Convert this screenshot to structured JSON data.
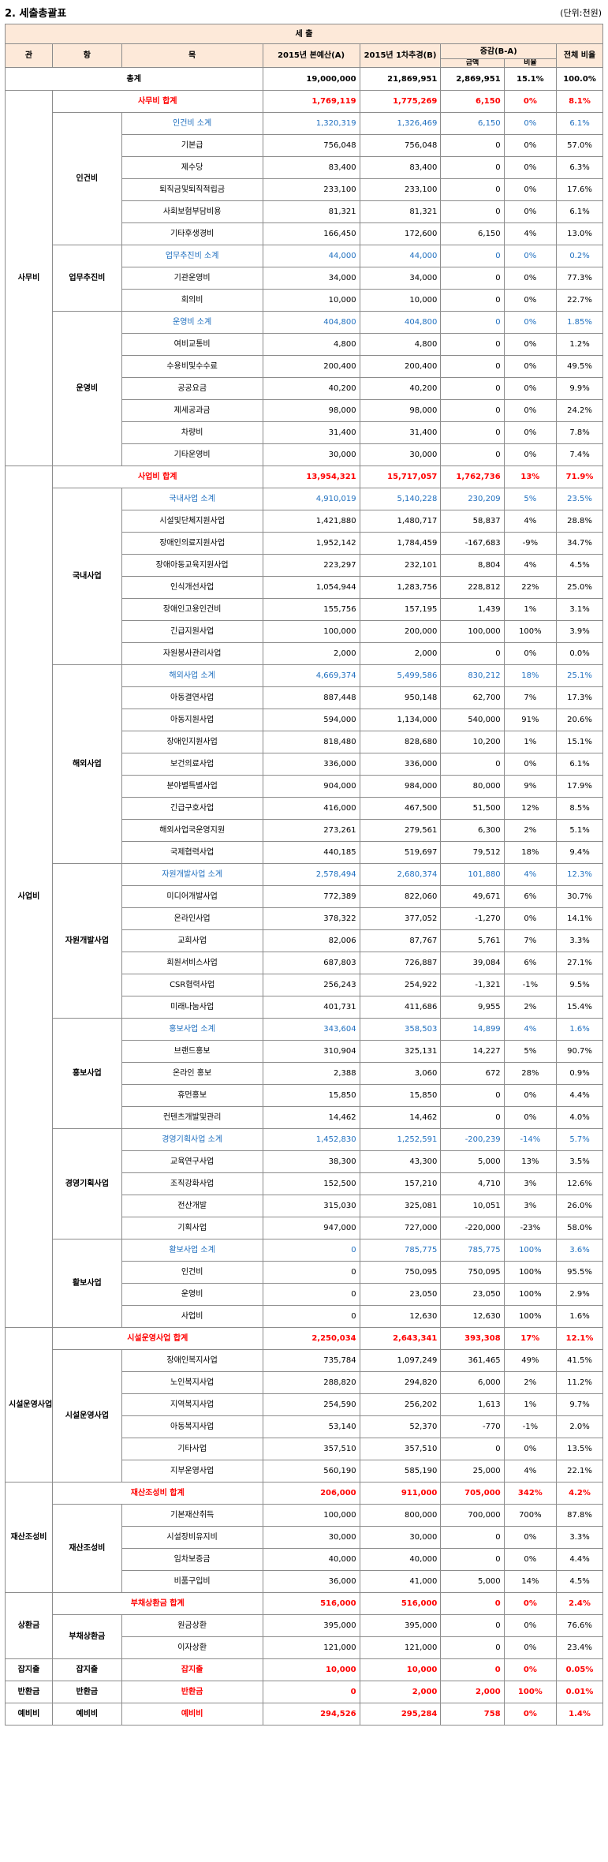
{
  "title": "2. 세출총괄표",
  "unit": "(단위:천원)",
  "header": {
    "section": "세  출",
    "gwan": "관",
    "hang": "항",
    "mok": "목",
    "col_a": "2015년 본예산(A)",
    "col_b": "2015년 1차추경(B)",
    "change": "증감(B-A)",
    "change_amount": "금액",
    "change_ratio": "비율",
    "total_share": "전체 비율"
  },
  "grand_total": {
    "label": "총계",
    "a": "19,000,000",
    "b": "21,869,951",
    "amount": "2,869,951",
    "ratio": "15.1%",
    "share": "100.0%"
  },
  "sections": [
    {
      "gwan": "사무비",
      "total": {
        "label": "사무비 합계",
        "a": "1,769,119",
        "b": "1,775,269",
        "amount": "6,150",
        "ratio": "0%",
        "share": "8.1%"
      },
      "groups": [
        {
          "hang": "인건비",
          "subtotal": {
            "label": "인건비 소계",
            "a": "1,320,319",
            "b": "1,326,469",
            "amount": "6,150",
            "ratio": "0%",
            "share": "6.1%"
          },
          "items": [
            {
              "label": "기본급",
              "a": "756,048",
              "b": "756,048",
              "amount": "0",
              "ratio": "0%",
              "share": "57.0%"
            },
            {
              "label": "제수당",
              "a": "83,400",
              "b": "83,400",
              "amount": "0",
              "ratio": "0%",
              "share": "6.3%"
            },
            {
              "label": "퇴직금및퇴직적립금",
              "a": "233,100",
              "b": "233,100",
              "amount": "0",
              "ratio": "0%",
              "share": "17.6%"
            },
            {
              "label": "사회보험부담비용",
              "a": "81,321",
              "b": "81,321",
              "amount": "0",
              "ratio": "0%",
              "share": "6.1%"
            },
            {
              "label": "기타후생경비",
              "a": "166,450",
              "b": "172,600",
              "amount": "6,150",
              "ratio": "4%",
              "share": "13.0%"
            }
          ]
        },
        {
          "hang": "업무추진비",
          "subtotal": {
            "label": "업무추진비 소계",
            "a": "44,000",
            "b": "44,000",
            "amount": "0",
            "ratio": "0%",
            "share": "0.2%"
          },
          "items": [
            {
              "label": "기관운영비",
              "a": "34,000",
              "b": "34,000",
              "amount": "0",
              "ratio": "0%",
              "share": "77.3%"
            },
            {
              "label": "회의비",
              "a": "10,000",
              "b": "10,000",
              "amount": "0",
              "ratio": "0%",
              "share": "22.7%"
            }
          ]
        },
        {
          "hang": "운영비",
          "subtotal": {
            "label": "운영비 소계",
            "a": "404,800",
            "b": "404,800",
            "amount": "0",
            "ratio": "0%",
            "share": "1.85%"
          },
          "items": [
            {
              "label": "여비교통비",
              "a": "4,800",
              "b": "4,800",
              "amount": "0",
              "ratio": "0%",
              "share": "1.2%"
            },
            {
              "label": "수용비및수수료",
              "a": "200,400",
              "b": "200,400",
              "amount": "0",
              "ratio": "0%",
              "share": "49.5%"
            },
            {
              "label": "공공요금",
              "a": "40,200",
              "b": "40,200",
              "amount": "0",
              "ratio": "0%",
              "share": "9.9%"
            },
            {
              "label": "제세공과금",
              "a": "98,000",
              "b": "98,000",
              "amount": "0",
              "ratio": "0%",
              "share": "24.2%"
            },
            {
              "label": "차량비",
              "a": "31,400",
              "b": "31,400",
              "amount": "0",
              "ratio": "0%",
              "share": "7.8%"
            },
            {
              "label": "기타운영비",
              "a": "30,000",
              "b": "30,000",
              "amount": "0",
              "ratio": "0%",
              "share": "7.4%"
            }
          ]
        }
      ]
    },
    {
      "gwan": "사업비",
      "total": {
        "label": "사업비 합계",
        "a": "13,954,321",
        "b": "15,717,057",
        "amount": "1,762,736",
        "ratio": "13%",
        "share": "71.9%"
      },
      "groups": [
        {
          "hang": "국내사업",
          "subtotal": {
            "label": "국내사업 소계",
            "a": "4,910,019",
            "b": "5,140,228",
            "amount": "230,209",
            "ratio": "5%",
            "share": "23.5%"
          },
          "items": [
            {
              "label": "시설및단체지원사업",
              "a": "1,421,880",
              "b": "1,480,717",
              "amount": "58,837",
              "ratio": "4%",
              "share": "28.8%"
            },
            {
              "label": "장애인의료지원사업",
              "a": "1,952,142",
              "b": "1,784,459",
              "amount": "-167,683",
              "ratio": "-9%",
              "share": "34.7%"
            },
            {
              "label": "장애아동교육지원사업",
              "a": "223,297",
              "b": "232,101",
              "amount": "8,804",
              "ratio": "4%",
              "share": "4.5%"
            },
            {
              "label": "인식개선사업",
              "a": "1,054,944",
              "b": "1,283,756",
              "amount": "228,812",
              "ratio": "22%",
              "share": "25.0%"
            },
            {
              "label": "장애인고용인건비",
              "a": "155,756",
              "b": "157,195",
              "amount": "1,439",
              "ratio": "1%",
              "share": "3.1%"
            },
            {
              "label": "긴급지원사업",
              "a": "100,000",
              "b": "200,000",
              "amount": "100,000",
              "ratio": "100%",
              "share": "3.9%"
            },
            {
              "label": "자원봉사관리사업",
              "a": "2,000",
              "b": "2,000",
              "amount": "0",
              "ratio": "0%",
              "share": "0.0%"
            }
          ]
        },
        {
          "hang": "해외사업",
          "subtotal": {
            "label": "해외사업 소계",
            "a": "4,669,374",
            "b": "5,499,586",
            "amount": "830,212",
            "ratio": "18%",
            "share": "25.1%"
          },
          "items": [
            {
              "label": "아동결연사업",
              "a": "887,448",
              "b": "950,148",
              "amount": "62,700",
              "ratio": "7%",
              "share": "17.3%"
            },
            {
              "label": "아동지원사업",
              "a": "594,000",
              "b": "1,134,000",
              "amount": "540,000",
              "ratio": "91%",
              "share": "20.6%"
            },
            {
              "label": "장애인지원사업",
              "a": "818,480",
              "b": "828,680",
              "amount": "10,200",
              "ratio": "1%",
              "share": "15.1%"
            },
            {
              "label": "보건의료사업",
              "a": "336,000",
              "b": "336,000",
              "amount": "0",
              "ratio": "0%",
              "share": "6.1%"
            },
            {
              "label": "분야별특별사업",
              "a": "904,000",
              "b": "984,000",
              "amount": "80,000",
              "ratio": "9%",
              "share": "17.9%"
            },
            {
              "label": "긴급구호사업",
              "a": "416,000",
              "b": "467,500",
              "amount": "51,500",
              "ratio": "12%",
              "share": "8.5%"
            },
            {
              "label": "해외사업국운영지원",
              "a": "273,261",
              "b": "279,561",
              "amount": "6,300",
              "ratio": "2%",
              "share": "5.1%"
            },
            {
              "label": "국제협력사업",
              "a": "440,185",
              "b": "519,697",
              "amount": "79,512",
              "ratio": "18%",
              "share": "9.4%"
            }
          ]
        },
        {
          "hang": "자원개발사업",
          "subtotal": {
            "label": "자원개발사업 소계",
            "a": "2,578,494",
            "b": "2,680,374",
            "amount": "101,880",
            "ratio": "4%",
            "share": "12.3%"
          },
          "items": [
            {
              "label": "미디어개발사업",
              "a": "772,389",
              "b": "822,060",
              "amount": "49,671",
              "ratio": "6%",
              "share": "30.7%"
            },
            {
              "label": "온라인사업",
              "a": "378,322",
              "b": "377,052",
              "amount": "-1,270",
              "ratio": "0%",
              "share": "14.1%"
            },
            {
              "label": "교회사업",
              "a": "82,006",
              "b": "87,767",
              "amount": "5,761",
              "ratio": "7%",
              "share": "3.3%"
            },
            {
              "label": "회원서비스사업",
              "a": "687,803",
              "b": "726,887",
              "amount": "39,084",
              "ratio": "6%",
              "share": "27.1%"
            },
            {
              "label": "CSR협력사업",
              "a": "256,243",
              "b": "254,922",
              "amount": "-1,321",
              "ratio": "-1%",
              "share": "9.5%"
            },
            {
              "label": "미래나눔사업",
              "a": "401,731",
              "b": "411,686",
              "amount": "9,955",
              "ratio": "2%",
              "share": "15.4%"
            }
          ]
        },
        {
          "hang": "홍보사업",
          "subtotal": {
            "label": "홍보사업 소계",
            "a": "343,604",
            "b": "358,503",
            "amount": "14,899",
            "ratio": "4%",
            "share": "1.6%"
          },
          "items": [
            {
              "label": "브랜드홍보",
              "a": "310,904",
              "b": "325,131",
              "amount": "14,227",
              "ratio": "5%",
              "share": "90.7%"
            },
            {
              "label": "온라인 홍보",
              "a": "2,388",
              "b": "3,060",
              "amount": "672",
              "ratio": "28%",
              "share": "0.9%"
            },
            {
              "label": "휴먼홍보",
              "a": "15,850",
              "b": "15,850",
              "amount": "0",
              "ratio": "0%",
              "share": "4.4%"
            },
            {
              "label": "컨텐츠개발및관리",
              "a": "14,462",
              "b": "14,462",
              "amount": "0",
              "ratio": "0%",
              "share": "4.0%"
            }
          ]
        },
        {
          "hang": "경영기획사업",
          "subtotal": {
            "label": "경영기획사업 소계",
            "a": "1,452,830",
            "b": "1,252,591",
            "amount": "-200,239",
            "ratio": "-14%",
            "share": "5.7%"
          },
          "items": [
            {
              "label": "교육연구사업",
              "a": "38,300",
              "b": "43,300",
              "amount": "5,000",
              "ratio": "13%",
              "share": "3.5%"
            },
            {
              "label": "조직강화사업",
              "a": "152,500",
              "b": "157,210",
              "amount": "4,710",
              "ratio": "3%",
              "share": "12.6%"
            },
            {
              "label": "전산개발",
              "a": "315,030",
              "b": "325,081",
              "amount": "10,051",
              "ratio": "3%",
              "share": "26.0%"
            },
            {
              "label": "기획사업",
              "a": "947,000",
              "b": "727,000",
              "amount": "-220,000",
              "ratio": "-23%",
              "share": "58.0%"
            }
          ]
        },
        {
          "hang": "활보사업",
          "subtotal": {
            "label": "활보사업 소계",
            "a": "0",
            "b": "785,775",
            "amount": "785,775",
            "ratio": "100%",
            "share": "3.6%"
          },
          "items": [
            {
              "label": "인건비",
              "a": "0",
              "b": "750,095",
              "amount": "750,095",
              "ratio": "100%",
              "share": "95.5%"
            },
            {
              "label": "운영비",
              "a": "0",
              "b": "23,050",
              "amount": "23,050",
              "ratio": "100%",
              "share": "2.9%"
            },
            {
              "label": "사업비",
              "a": "0",
              "b": "12,630",
              "amount": "12,630",
              "ratio": "100%",
              "share": "1.6%"
            }
          ]
        }
      ]
    },
    {
      "gwan": "시설운영사업",
      "total": {
        "label": "시설운영사업 합계",
        "a": "2,250,034",
        "b": "2,643,341",
        "amount": "393,308",
        "ratio": "17%",
        "share": "12.1%"
      },
      "groups": [
        {
          "hang": "시설운영사업",
          "items": [
            {
              "label": "장애인복지사업",
              "a": "735,784",
              "b": "1,097,249",
              "amount": "361,465",
              "ratio": "49%",
              "share": "41.5%"
            },
            {
              "label": "노인복지사업",
              "a": "288,820",
              "b": "294,820",
              "amount": "6,000",
              "ratio": "2%",
              "share": "11.2%"
            },
            {
              "label": "지역복지사업",
              "a": "254,590",
              "b": "256,202",
              "amount": "1,613",
              "ratio": "1%",
              "share": "9.7%"
            },
            {
              "label": "아동복지사업",
              "a": "53,140",
              "b": "52,370",
              "amount": "-770",
              "ratio": "-1%",
              "share": "2.0%"
            },
            {
              "label": "기타사업",
              "a": "357,510",
              "b": "357,510",
              "amount": "0",
              "ratio": "0%",
              "share": "13.5%"
            },
            {
              "label": "지부운영사업",
              "a": "560,190",
              "b": "585,190",
              "amount": "25,000",
              "ratio": "4%",
              "share": "22.1%"
            }
          ]
        }
      ]
    },
    {
      "gwan": "재산조성비",
      "total": {
        "label": "재산조성비 합계",
        "a": "206,000",
        "b": "911,000",
        "amount": "705,000",
        "ratio": "342%",
        "share": "4.2%"
      },
      "groups": [
        {
          "hang": "재산조성비",
          "items": [
            {
              "label": "기본재산취득",
              "a": "100,000",
              "b": "800,000",
              "amount": "700,000",
              "ratio": "700%",
              "share": "87.8%"
            },
            {
              "label": "시설장비유지비",
              "a": "30,000",
              "b": "30,000",
              "amount": "0",
              "ratio": "0%",
              "share": "3.3%"
            },
            {
              "label": "임차보증금",
              "a": "40,000",
              "b": "40,000",
              "amount": "0",
              "ratio": "0%",
              "share": "4.4%"
            },
            {
              "label": "비품구입비",
              "a": "36,000",
              "b": "41,000",
              "amount": "5,000",
              "ratio": "14%",
              "share": "4.5%"
            }
          ]
        }
      ]
    },
    {
      "gwan": "상환금",
      "total": {
        "label": "부채상환금 합계",
        "a": "516,000",
        "b": "516,000",
        "amount": "0",
        "ratio": "0%",
        "share": "2.4%"
      },
      "groups": [
        {
          "hang": "부채상환금",
          "items": [
            {
              "label": "원금상환",
              "a": "395,000",
              "b": "395,000",
              "amount": "0",
              "ratio": "0%",
              "share": "76.6%"
            },
            {
              "label": "이자상환",
              "a": "121,000",
              "b": "121,000",
              "amount": "0",
              "ratio": "0%",
              "share": "23.4%"
            }
          ]
        }
      ]
    }
  ],
  "singles": [
    {
      "gwan": "잡지출",
      "hang": "잡지출",
      "label": "잡지출",
      "a": "10,000",
      "b": "10,000",
      "amount": "0",
      "ratio": "0%",
      "share": "0.05%"
    },
    {
      "gwan": "반환금",
      "hang": "반환금",
      "label": "반환금",
      "a": "0",
      "b": "2,000",
      "amount": "2,000",
      "ratio": "100%",
      "share": "0.01%"
    },
    {
      "gwan": "예비비",
      "hang": "예비비",
      "label": "예비비",
      "a": "294,526",
      "b": "295,284",
      "amount": "758",
      "ratio": "0%",
      "share": "1.4%"
    }
  ]
}
